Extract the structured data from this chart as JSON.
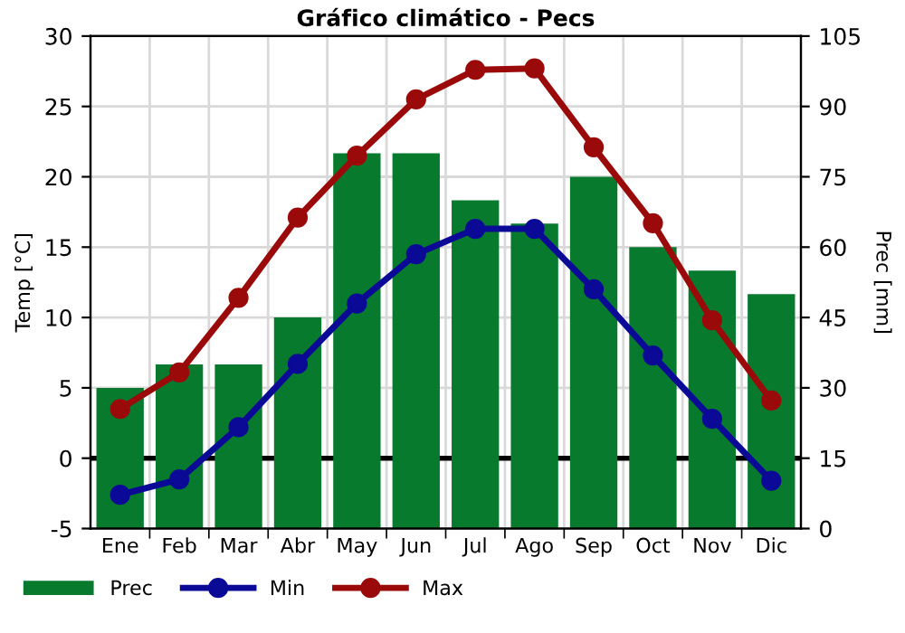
{
  "chart_data": {
    "type": "line",
    "title": "Gráfico climático - Pecs",
    "ylabel": "Temp [°C]",
    "y2label": "Prec [mm]",
    "categories": [
      "Ene",
      "Feb",
      "Mar",
      "Abr",
      "May",
      "Jun",
      "Jul",
      "Ago",
      "Sep",
      "Oct",
      "Nov",
      "Dic"
    ],
    "series": [
      {
        "name": "Prec",
        "type": "bar",
        "axis": "y2",
        "color": "#077a2e",
        "values": [
          30,
          35,
          35,
          45,
          80,
          80,
          70,
          65,
          75,
          60,
          55,
          50
        ]
      },
      {
        "name": "Min",
        "color": "#0a0a96",
        "values": [
          -2.6,
          -1.5,
          2.2,
          6.7,
          11.0,
          14.5,
          16.3,
          16.3,
          12.0,
          7.3,
          2.8,
          -1.6
        ]
      },
      {
        "name": "Max",
        "color": "#9b0a0a",
        "values": [
          3.5,
          6.1,
          11.4,
          17.1,
          21.5,
          25.5,
          27.6,
          27.7,
          22.1,
          16.7,
          9.8,
          4.1
        ]
      }
    ],
    "ylim": [
      -5,
      30
    ],
    "yticks": [
      -5,
      0,
      5,
      10,
      15,
      20,
      25,
      30
    ],
    "y2lim": [
      0,
      105
    ],
    "y2ticks": [
      0,
      15,
      30,
      45,
      60,
      75,
      90,
      105
    ],
    "ref_lines": [
      {
        "axis": "y",
        "value": 0,
        "color": "#000000"
      }
    ],
    "grid": true,
    "legend": "bottom left",
    "marker": "circle",
    "line_style": "solid"
  }
}
